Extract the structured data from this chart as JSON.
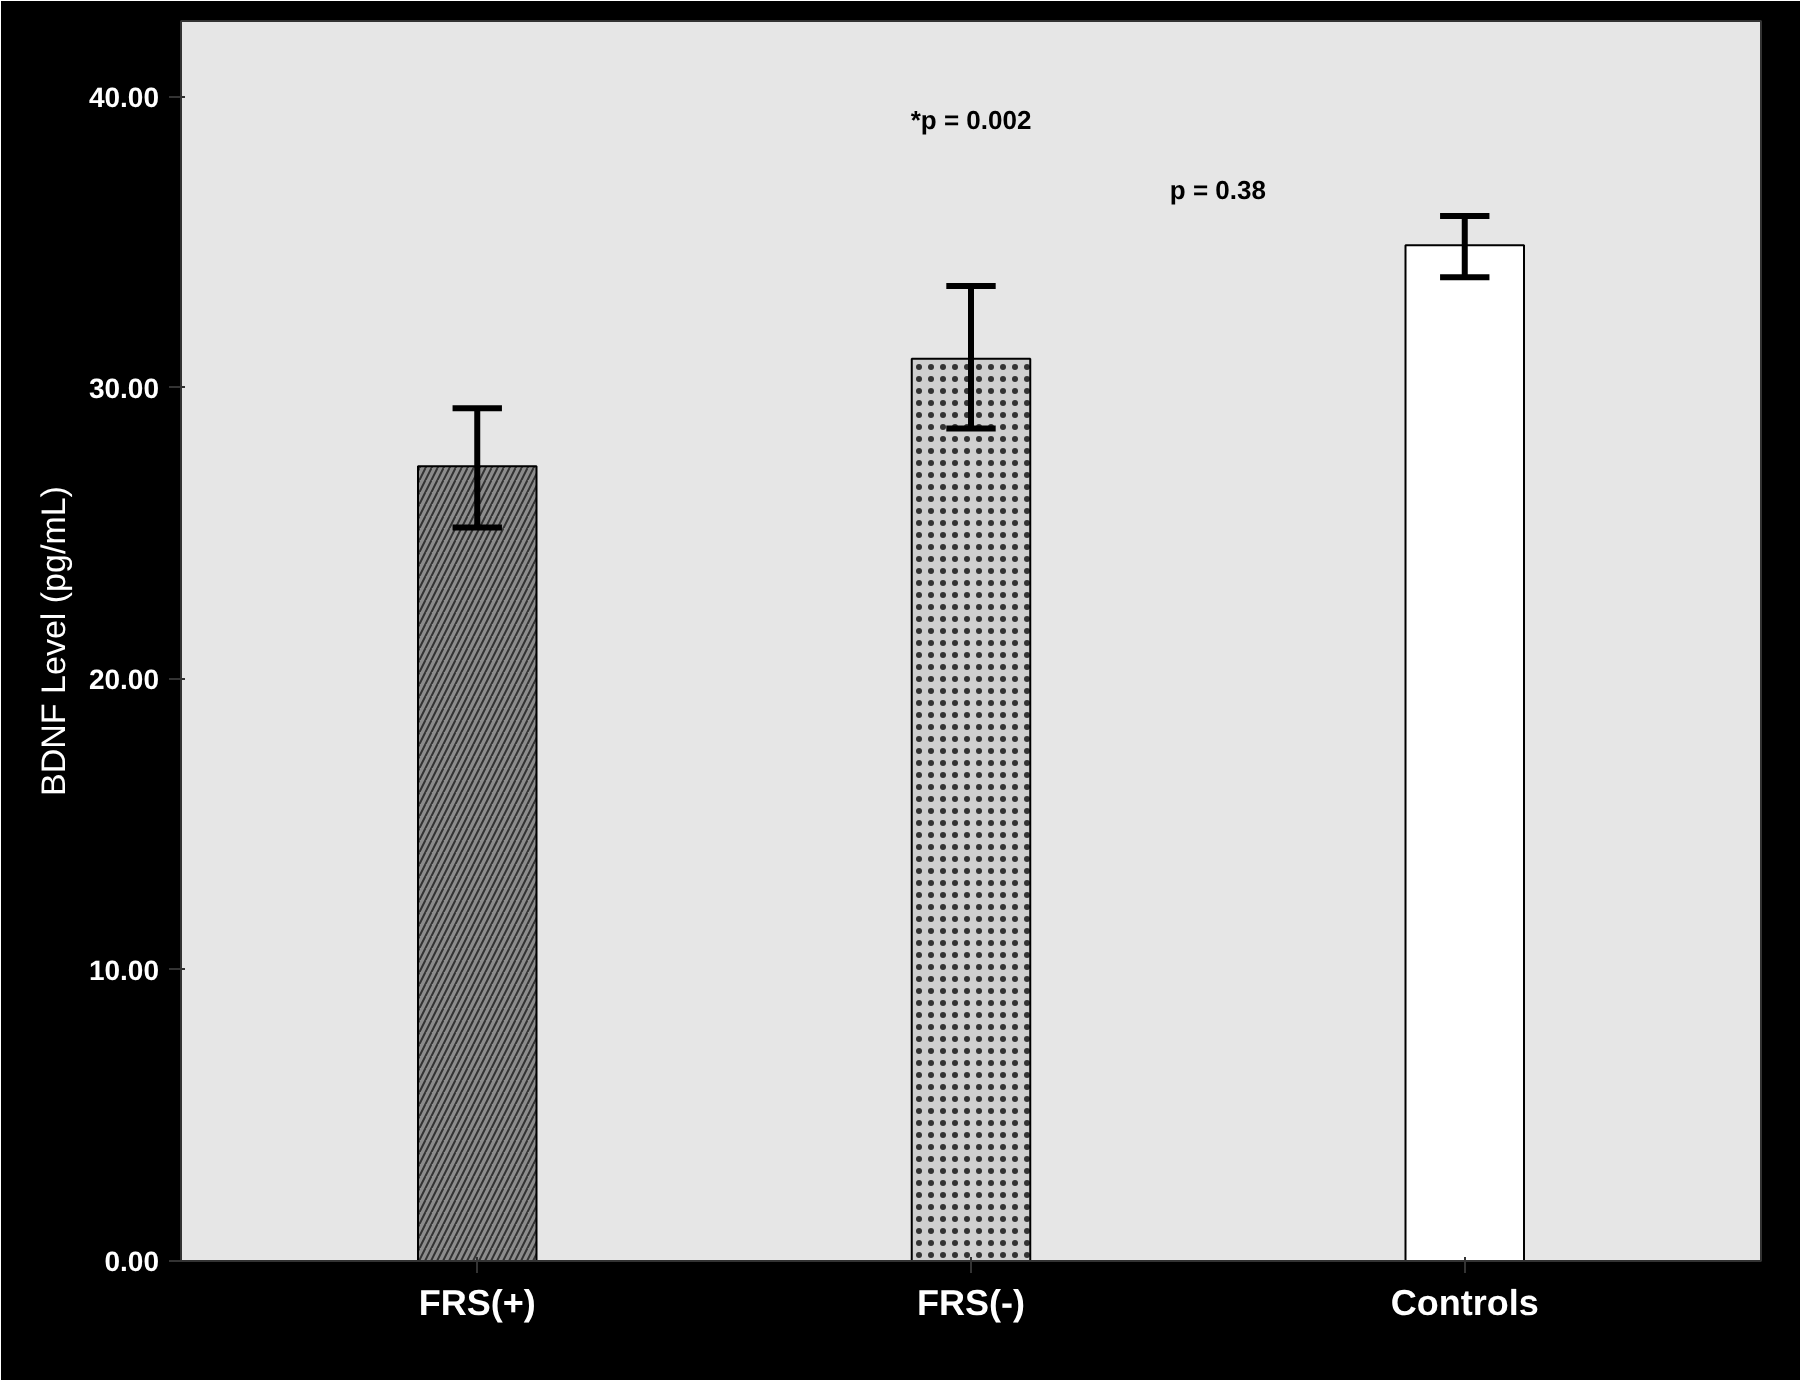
{
  "chart_data": {
    "type": "bar",
    "ylabel": "BDNF Level (pg/mL)",
    "categories": [
      "FRS(+)",
      "FRS(-)",
      "Controls"
    ],
    "values": [
      27.3,
      31.0,
      34.9
    ],
    "errors": [
      [
        25.2,
        29.3
      ],
      [
        28.6,
        33.5
      ],
      [
        33.8,
        35.9
      ]
    ],
    "colors": [
      "#8c8c8c",
      "#cfcfcf",
      "#ffffff"
    ],
    "ylim": [
      0,
      42.6
    ],
    "yticks": [
      {
        "value": 0,
        "label": "0.00"
      },
      {
        "value": 10,
        "label": "10.00"
      },
      {
        "value": 20,
        "label": "20.00"
      },
      {
        "value": 30,
        "label": "30.00"
      },
      {
        "value": 40,
        "label": "40.00"
      }
    ],
    "grid": false,
    "annotations": [
      "*p = 0.002",
      "p = 0.38"
    ]
  }
}
